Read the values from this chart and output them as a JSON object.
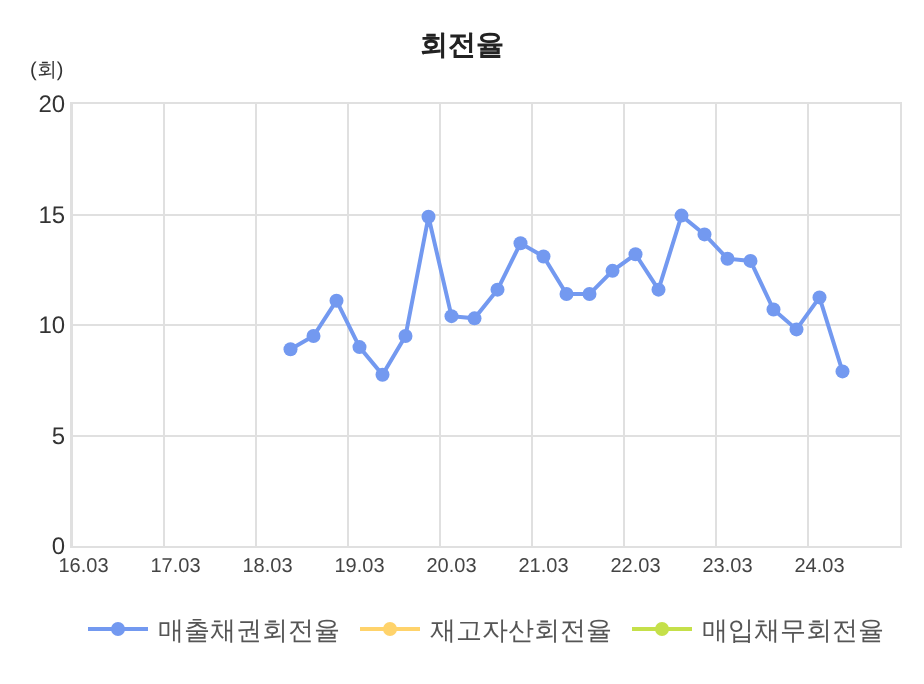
{
  "chart_data": {
    "type": "line",
    "title": "회전율",
    "ylabel": "(회)",
    "categories": [
      "16.03",
      null,
      null,
      null,
      "17.03",
      null,
      null,
      null,
      "18.03",
      null,
      null,
      null,
      "19.03",
      null,
      null,
      null,
      "20.03",
      null,
      null,
      null,
      "21.03",
      null,
      null,
      null,
      "22.03",
      null,
      null,
      null,
      "23.03",
      null,
      null,
      null,
      "24.03",
      null,
      null,
      null
    ],
    "series": [
      {
        "name": "매출채권회전율",
        "color": "#7399f0",
        "values": [
          null,
          null,
          null,
          null,
          null,
          null,
          null,
          null,
          null,
          8.9,
          9.5,
          11.1,
          9.0,
          7.75,
          9.5,
          14.9,
          10.4,
          10.3,
          11.6,
          13.7,
          13.1,
          11.4,
          11.4,
          12.45,
          13.2,
          11.6,
          14.95,
          14.1,
          13.0,
          12.9,
          10.7,
          9.8,
          11.25,
          7.9,
          null,
          null
        ]
      },
      {
        "name": "재고자산회전율",
        "color": "#ffd36b",
        "values": [
          null,
          null,
          null,
          null,
          null,
          null,
          null,
          null,
          null,
          null,
          null,
          null,
          null,
          null,
          null,
          null,
          null,
          null,
          null,
          null,
          null,
          null,
          null,
          null,
          null,
          null,
          null,
          null,
          null,
          null,
          null,
          null,
          null,
          null,
          null,
          null
        ]
      },
      {
        "name": "매입채무회전율",
        "color": "#c5e04a",
        "values": [
          null,
          null,
          null,
          null,
          null,
          null,
          null,
          null,
          null,
          null,
          null,
          null,
          null,
          null,
          null,
          null,
          null,
          null,
          null,
          null,
          null,
          null,
          null,
          null,
          null,
          null,
          null,
          null,
          null,
          null,
          null,
          null,
          null,
          null,
          null,
          null
        ]
      }
    ],
    "ylim": [
      0,
      20
    ],
    "yticks": [
      0,
      5,
      10,
      15,
      20
    ],
    "grid": true,
    "legend": "bottom",
    "marker": "circle",
    "line_style": "solid"
  }
}
